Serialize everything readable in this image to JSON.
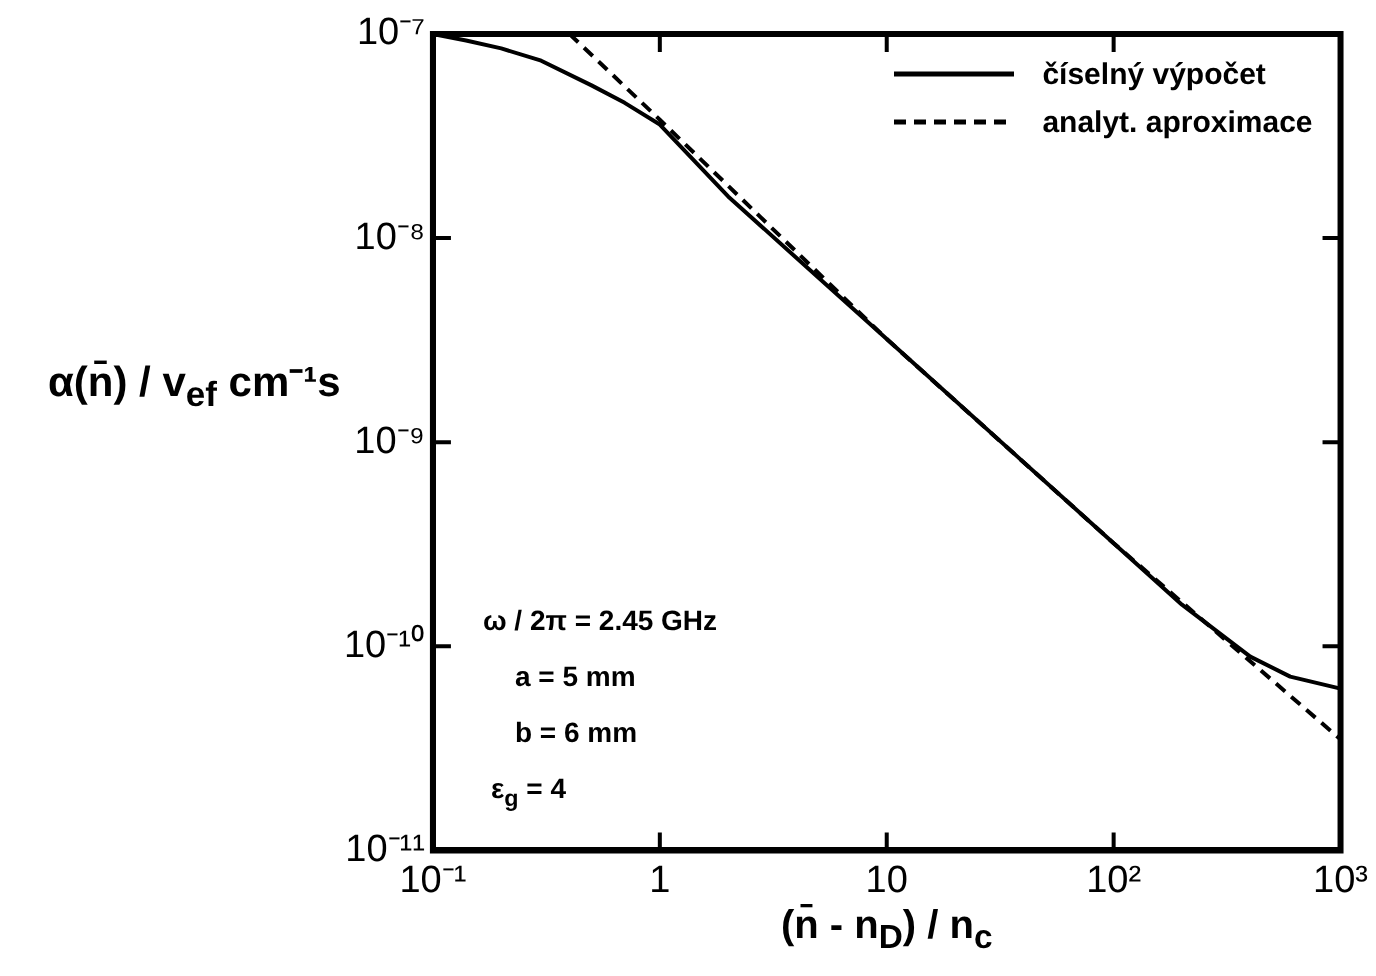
{
  "chart_data": {
    "type": "line",
    "xlabel": "(n̄ - n$_{D}$) / n$_{c}$",
    "ylabel": "α(n̄) / v$_{ef}$  cm⁻¹s",
    "log": "xy",
    "xlim": [
      0.1,
      1000
    ],
    "xticks": [
      {
        "value": 0.1,
        "label": "10⁻¹"
      },
      1,
      10,
      {
        "value": 100,
        "label": "10²"
      },
      {
        "value": 1000,
        "label": "10³"
      }
    ],
    "ylim": [
      1e-11,
      1e-07
    ],
    "yticks": [
      {
        "value": 1e-11,
        "label": "10⁻¹¹"
      },
      {
        "value": 1e-10,
        "label": "10⁻¹⁰"
      },
      {
        "value": 1e-09,
        "label": "10⁻⁹"
      },
      {
        "value": 1e-08,
        "label": "10⁻⁸"
      },
      {
        "value": 1e-07,
        "label": "10⁻⁷"
      }
    ],
    "grid": false,
    "legend": "top right",
    "marker": "none",
    "series": [
      {
        "name": "číselný výpočet",
        "color": "#000000",
        "line_style": "solid",
        "x": [
          0.1,
          0.14,
          0.2,
          0.3,
          0.5,
          0.7,
          1,
          2,
          10,
          100,
          200,
          400,
          600,
          1000
        ],
        "values": [
          1e-07,
          9.3e-08,
          8.5e-08,
          7.4e-08,
          5.6e-08,
          4.6e-08,
          3.6e-08,
          1.6e-08,
          3.2e-09,
          3.2e-10,
          1.6e-10,
          8.9e-11,
          7.1e-11,
          6.2e-11
        ]
      },
      {
        "name": "analyt. aproximace",
        "color": "#000000",
        "line_style": "dashed",
        "x": [
          0.4,
          1,
          10,
          100,
          1000
        ],
        "values": [
          1e-07,
          3.8e-08,
          3.2e-09,
          3.2e-10,
          3.5e-11
        ]
      }
    ],
    "annotations": [
      "ω / 2π = 2.45 GHz",
      "a = 5 mm",
      "b = 6 mm",
      "ε$_{g}$ = 4"
    ]
  }
}
